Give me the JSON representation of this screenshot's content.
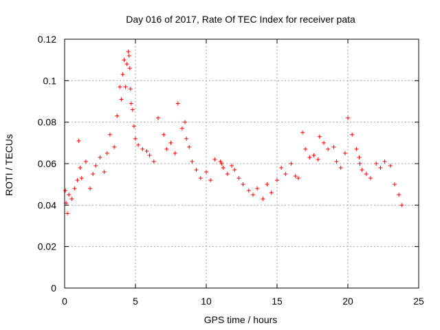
{
  "chart_data": {
    "type": "scatter",
    "title": "Day 016 of 2017, Rate Of TEC Index for receiver pata",
    "xlabel": "GPS time / hours",
    "ylabel": "ROTI / TECUs",
    "xlim": [
      0,
      25
    ],
    "ylim": [
      0,
      0.12
    ],
    "xticks": [
      0,
      5,
      10,
      15,
      20,
      25
    ],
    "yticks": [
      0,
      0.02,
      0.04,
      0.06,
      0.08,
      0.1,
      0.12
    ],
    "xtick_labels": [
      "0",
      "5",
      "10",
      "15",
      "20",
      "25"
    ],
    "ytick_labels": [
      "0",
      "0.02",
      "0.04",
      "0.06",
      "0.08",
      "0.1",
      "0.12"
    ],
    "grid": true,
    "marker": "+",
    "series": [
      {
        "name": "ROTI",
        "color": "#ff0000",
        "x": [
          0.05,
          0.1,
          0.2,
          0.3,
          0.5,
          0.7,
          0.9,
          1.0,
          1.1,
          1.2,
          1.5,
          1.8,
          2.0,
          2.2,
          2.5,
          2.8,
          3.0,
          3.2,
          3.5,
          3.7,
          3.9,
          4.0,
          4.1,
          4.2,
          4.3,
          4.4,
          4.5,
          4.55,
          4.6,
          4.65,
          4.7,
          4.8,
          4.9,
          5.0,
          5.2,
          5.5,
          5.8,
          6.0,
          6.3,
          6.6,
          7.0,
          7.2,
          7.5,
          7.8,
          8.0,
          8.3,
          8.5,
          8.6,
          8.8,
          9.0,
          9.3,
          9.6,
          10.0,
          10.3,
          10.6,
          11.0,
          11.1,
          11.2,
          11.5,
          11.8,
          12.0,
          12.3,
          12.6,
          13.0,
          13.3,
          13.6,
          14.0,
          14.3,
          14.6,
          15.0,
          15.3,
          15.6,
          16.0,
          16.3,
          16.5,
          16.8,
          17.0,
          17.3,
          17.6,
          17.9,
          18.0,
          18.3,
          18.6,
          19.0,
          19.2,
          19.5,
          19.8,
          20.0,
          20.3,
          20.6,
          20.8,
          20.85,
          21.0,
          21.3,
          21.6,
          22.0,
          22.3,
          22.6,
          23.0,
          23.3,
          23.6,
          23.8
        ],
        "y": [
          0.047,
          0.041,
          0.036,
          0.045,
          0.043,
          0.048,
          0.052,
          0.071,
          0.058,
          0.053,
          0.061,
          0.048,
          0.055,
          0.059,
          0.063,
          0.056,
          0.065,
          0.074,
          0.068,
          0.083,
          0.097,
          0.091,
          0.103,
          0.11,
          0.097,
          0.108,
          0.114,
          0.112,
          0.106,
          0.096,
          0.089,
          0.086,
          0.078,
          0.072,
          0.069,
          0.067,
          0.066,
          0.064,
          0.061,
          0.082,
          0.074,
          0.067,
          0.07,
          0.065,
          0.089,
          0.077,
          0.08,
          0.072,
          0.068,
          0.061,
          0.057,
          0.053,
          0.056,
          0.052,
          0.062,
          0.061,
          0.06,
          0.058,
          0.055,
          0.059,
          0.057,
          0.053,
          0.05,
          0.047,
          0.045,
          0.048,
          0.043,
          0.05,
          0.046,
          0.052,
          0.058,
          0.055,
          0.06,
          0.054,
          0.053,
          0.075,
          0.067,
          0.063,
          0.064,
          0.062,
          0.073,
          0.07,
          0.067,
          0.068,
          0.061,
          0.058,
          0.065,
          0.082,
          0.074,
          0.067,
          0.063,
          0.06,
          0.057,
          0.055,
          0.053,
          0.06,
          0.058,
          0.061,
          0.059,
          0.05,
          0.045,
          0.04
        ]
      }
    ]
  }
}
